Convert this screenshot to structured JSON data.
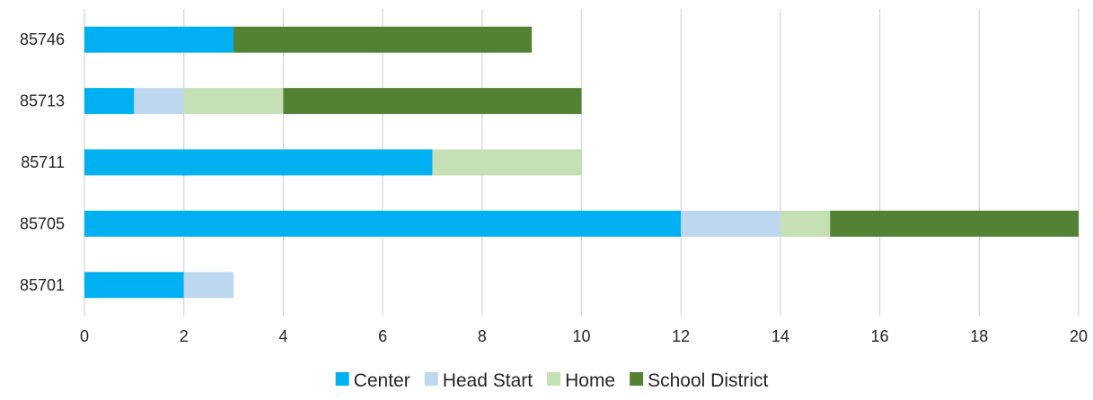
{
  "chart_data": {
    "type": "bar",
    "orientation": "horizontal",
    "stacked": true,
    "categories": [
      "85746",
      "85713",
      "85711",
      "85705",
      "85701"
    ],
    "series": [
      {
        "name": "Center",
        "color": "#00B0F0",
        "values": [
          3,
          1,
          7,
          12,
          2
        ]
      },
      {
        "name": "Head Start",
        "color": "#BDD7EE",
        "values": [
          0,
          1,
          0,
          2,
          1
        ]
      },
      {
        "name": "Home",
        "color": "#C5E0B4",
        "values": [
          0,
          2,
          3,
          1,
          0
        ]
      },
      {
        "name": "School District",
        "color": "#548235",
        "values": [
          6,
          6,
          0,
          5,
          0
        ]
      }
    ],
    "xlim": [
      0,
      20
    ],
    "xticks": [
      0,
      2,
      4,
      6,
      8,
      10,
      12,
      14,
      16,
      18,
      20
    ],
    "grid": "vertical",
    "legend": "bottom-center",
    "title": "",
    "xlabel": "",
    "ylabel": ""
  }
}
